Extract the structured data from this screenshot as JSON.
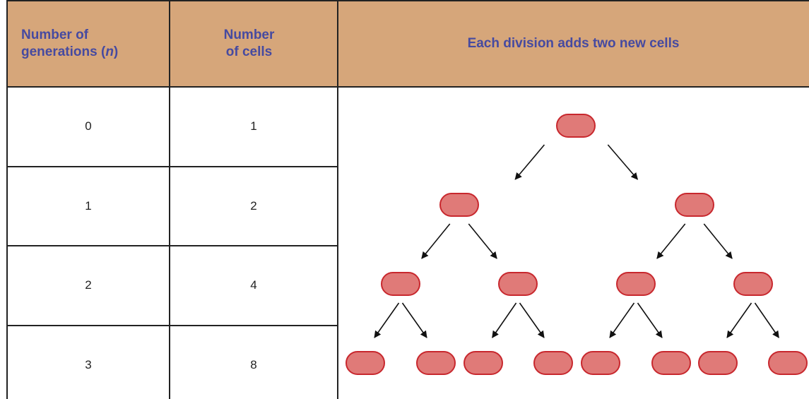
{
  "table": {
    "header": [
      {
        "parts": [
          "Number of generations (",
          "n",
          ")"
        ]
      },
      {
        "parts": [
          "Number of cells"
        ]
      },
      {
        "parts": [
          "Each division adds two new cells"
        ]
      }
    ],
    "rows": [
      [
        "0",
        "1"
      ],
      [
        "1",
        "2"
      ],
      [
        "2",
        "4"
      ],
      [
        "3",
        "8"
      ]
    ]
  }
}
